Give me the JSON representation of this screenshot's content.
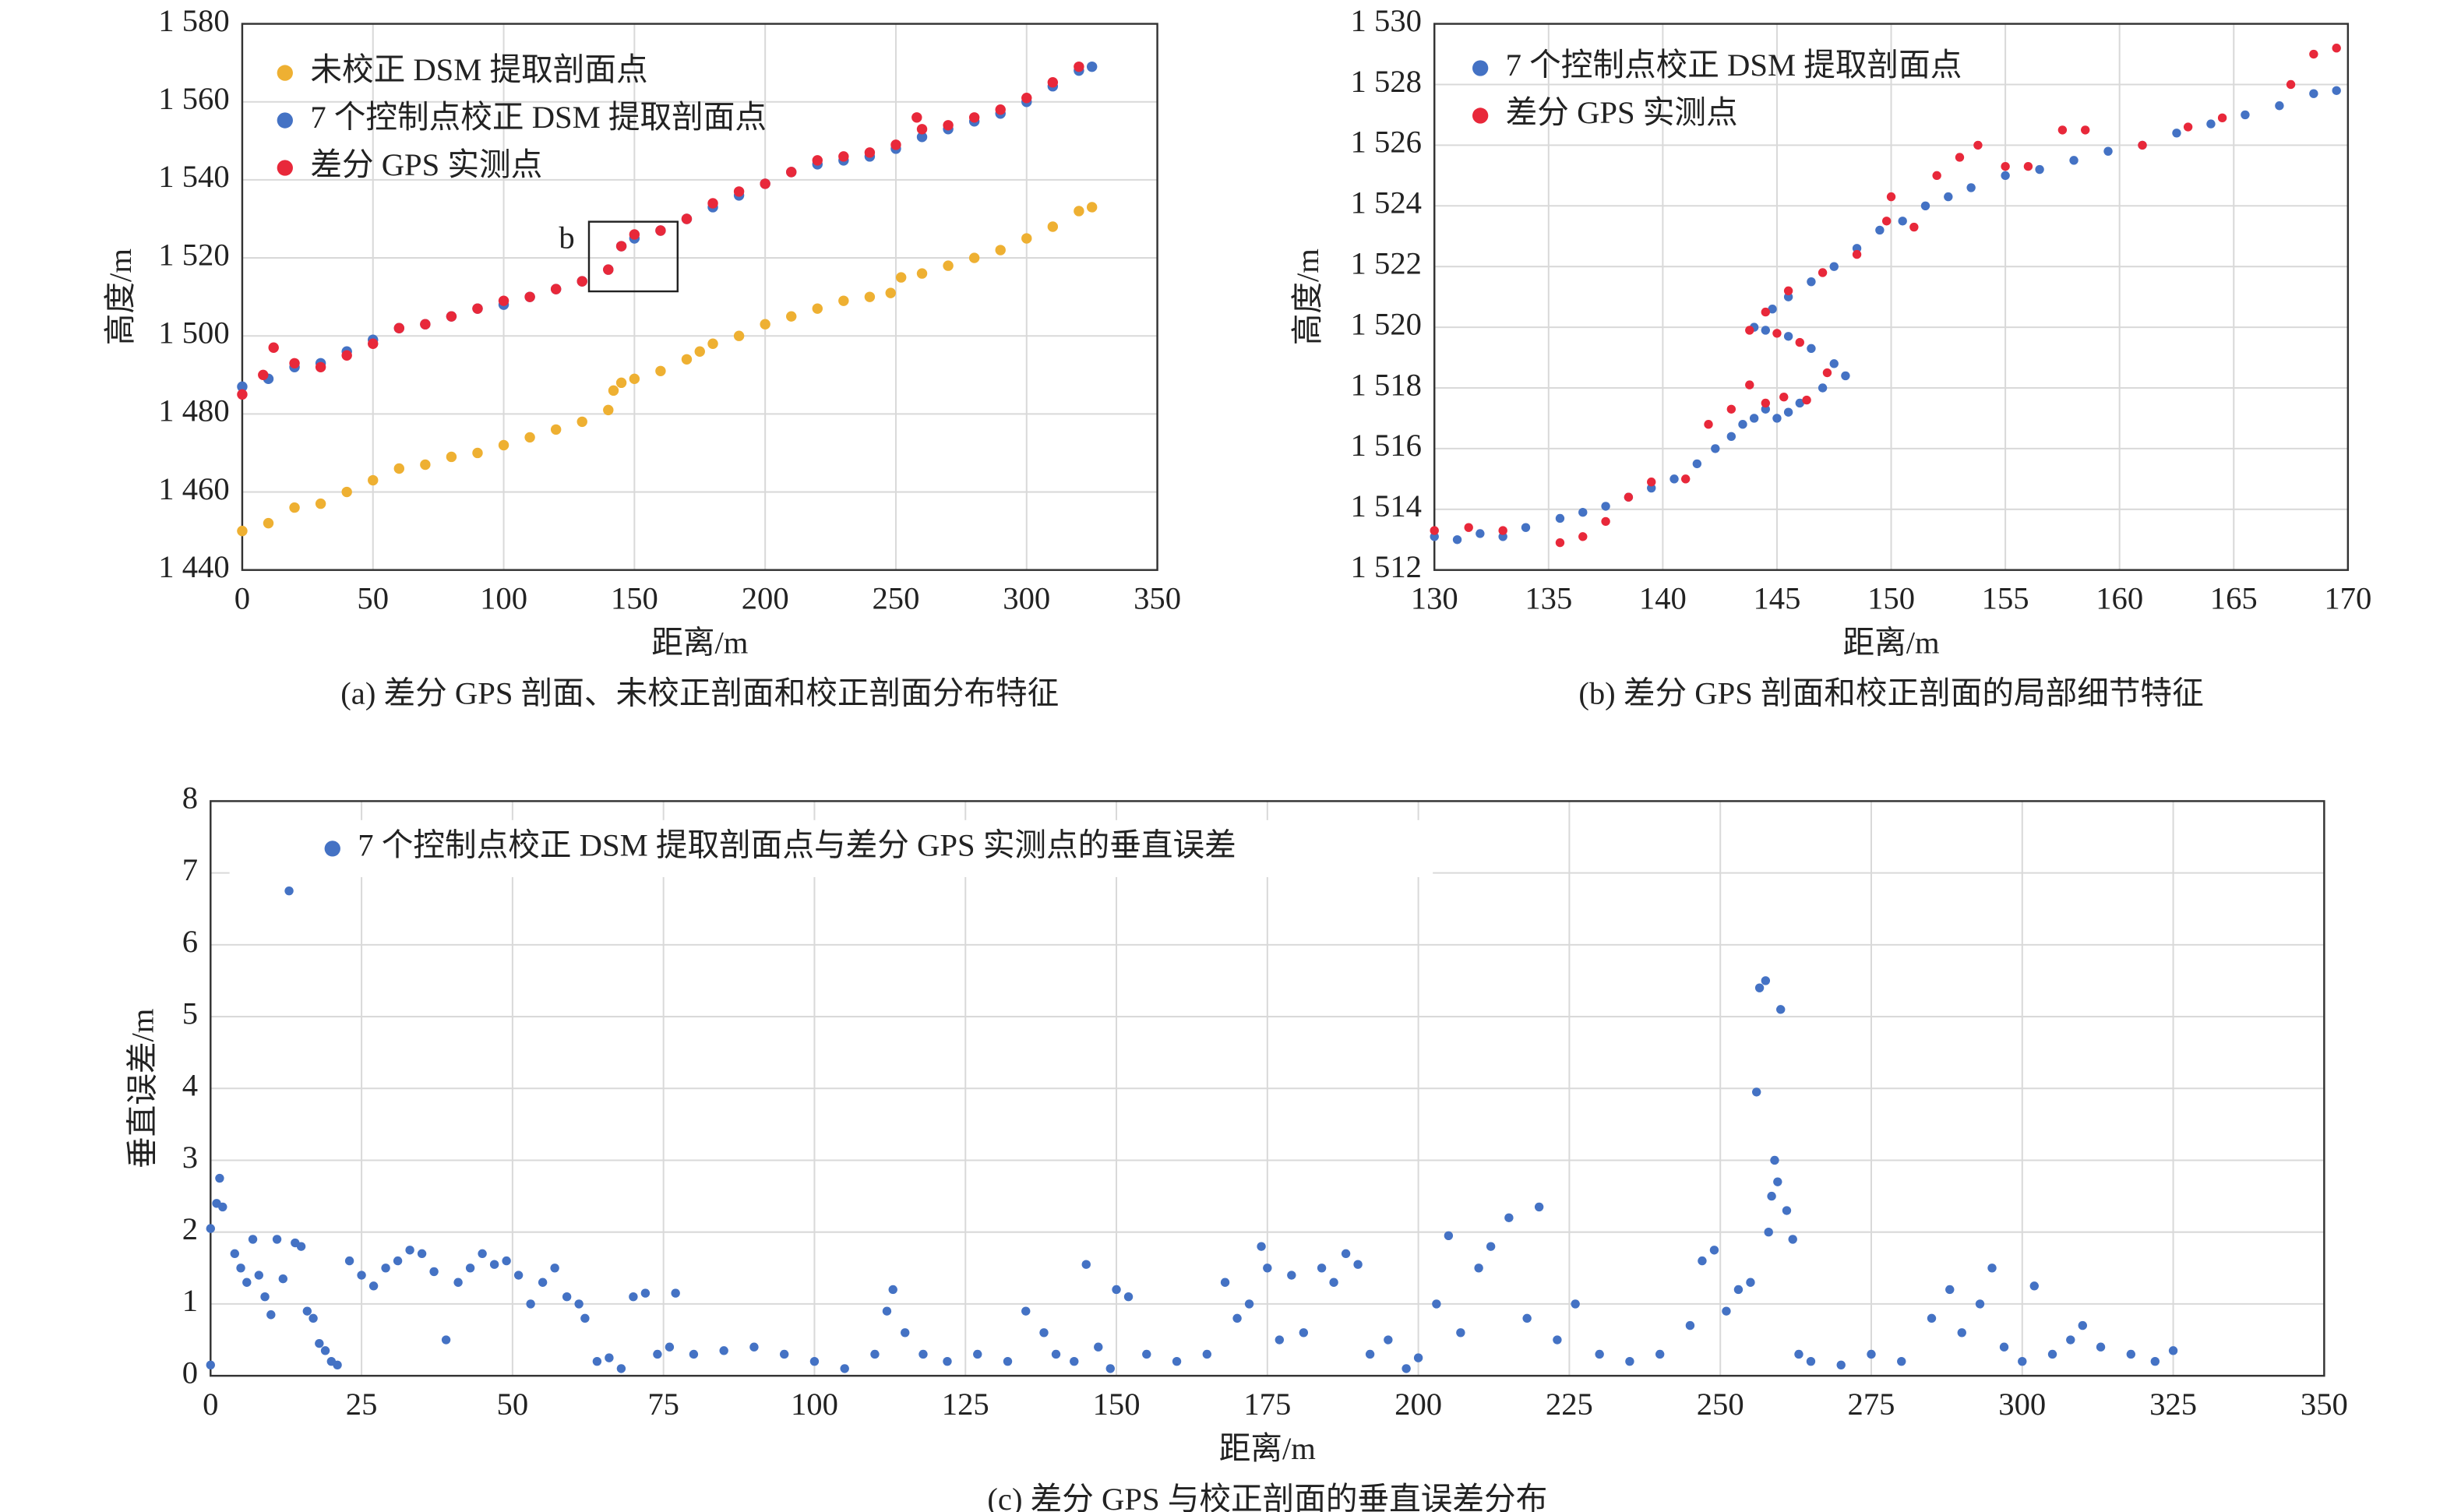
{
  "chart_data": [
    {
      "type": "scatter",
      "title": "(a) 差分 GPS 剖面、未校正剖面和校正剖面分布特征",
      "xlabel": "距离/m",
      "ylabel": "高度/m",
      "annotation": "b",
      "legend": "upper left",
      "grid": true,
      "xlim": [
        0,
        350
      ],
      "xticks": [
        0,
        50,
        100,
        150,
        200,
        250,
        300,
        350
      ],
      "ylim": [
        1440,
        1580
      ],
      "yticks": [
        {
          "value": 1440,
          "label": "1 440"
        },
        {
          "value": 1460,
          "label": "1 460"
        },
        {
          "value": 1480,
          "label": "1 480"
        },
        {
          "value": 1500,
          "label": "1 500"
        },
        {
          "value": 1520,
          "label": "1 520"
        },
        {
          "value": 1540,
          "label": "1 540"
        },
        {
          "value": 1560,
          "label": "1 560"
        },
        {
          "value": 1580,
          "label": "1 580"
        }
      ],
      "series": [
        {
          "name": "未校正 DSM 提取剖面点",
          "color": "#eeb032",
          "x": [
            0,
            10,
            20,
            30,
            40,
            50,
            60,
            70,
            80,
            90,
            100,
            110,
            120,
            130,
            140,
            142,
            145,
            150,
            160,
            170,
            175,
            180,
            190,
            200,
            210,
            220,
            230,
            240,
            248,
            252,
            260,
            270,
            280,
            290,
            300,
            310,
            320,
            325
          ],
          "y": [
            1450,
            1452,
            1456,
            1457,
            1460,
            1463,
            1466,
            1467,
            1469,
            1470,
            1472,
            1474,
            1476,
            1478,
            1481,
            1486,
            1488,
            1489,
            1491,
            1494,
            1496,
            1498,
            1500,
            1503,
            1505,
            1507,
            1509,
            1510,
            1511,
            1515,
            1516,
            1518,
            1520,
            1522,
            1525,
            1528,
            1532,
            1533
          ]
        },
        {
          "name": "7 个控制点校正 DSM 提取剖面点",
          "color": "#4472c4",
          "x": [
            0,
            10,
            20,
            30,
            40,
            50,
            60,
            70,
            80,
            90,
            100,
            110,
            120,
            130,
            140,
            145,
            150,
            160,
            170,
            180,
            190,
            200,
            210,
            220,
            230,
            240,
            250,
            260,
            270,
            280,
            290,
            300,
            310,
            320,
            325
          ],
          "y": [
            1487,
            1489,
            1492,
            1493,
            1496,
            1499,
            1502,
            1503,
            1505,
            1507,
            1508,
            1510,
            1512,
            1514,
            1517,
            1523,
            1525,
            1527,
            1530,
            1533,
            1536,
            1539,
            1542,
            1544,
            1545,
            1546,
            1548,
            1551,
            1553,
            1555,
            1557,
            1560,
            1564,
            1568,
            1569
          ]
        },
        {
          "name": "差分 GPS 实测点",
          "color": "#e8283a",
          "x": [
            0,
            8,
            12,
            20,
            30,
            40,
            50,
            60,
            70,
            80,
            90,
            100,
            110,
            120,
            130,
            140,
            145,
            150,
            160,
            170,
            180,
            190,
            200,
            210,
            220,
            230,
            240,
            250,
            258,
            260,
            270,
            280,
            290,
            300,
            310,
            320
          ],
          "y": [
            1485,
            1490,
            1497,
            1493,
            1492,
            1495,
            1498,
            1502,
            1503,
            1505,
            1507,
            1509,
            1510,
            1512,
            1514,
            1517,
            1523,
            1526,
            1527,
            1530,
            1534,
            1537,
            1539,
            1542,
            1545,
            1546,
            1547,
            1549,
            1556,
            1553,
            1554,
            1556,
            1558,
            1561,
            1565,
            1569
          ]
        }
      ]
    },
    {
      "type": "scatter",
      "title": "(b) 差分 GPS 剖面和校正剖面的局部细节特征",
      "xlabel": "距离/m",
      "ylabel": "高度/m",
      "legend": "upper left",
      "grid": true,
      "xlim": [
        130,
        170
      ],
      "xticks": [
        130,
        135,
        140,
        145,
        150,
        155,
        160,
        165,
        170
      ],
      "ylim": [
        1512,
        1530
      ],
      "yticks": [
        {
          "value": 1512,
          "label": "1 512"
        },
        {
          "value": 1514,
          "label": "1 514"
        },
        {
          "value": 1516,
          "label": "1 516"
        },
        {
          "value": 1518,
          "label": "1 518"
        },
        {
          "value": 1520,
          "label": "1 520"
        },
        {
          "value": 1522,
          "label": "1 522"
        },
        {
          "value": 1524,
          "label": "1 524"
        },
        {
          "value": 1526,
          "label": "1 526"
        },
        {
          "value": 1528,
          "label": "1 528"
        },
        {
          "value": 1530,
          "label": "1 530"
        }
      ],
      "series": [
        {
          "name": "7 个控制点校正 DSM 提取剖面点",
          "color": "#4472c4",
          "x": [
            130,
            131,
            132,
            133,
            134,
            135.5,
            136.5,
            137.5,
            138.5,
            139.5,
            140.5,
            141.5,
            142.3,
            143,
            143.5,
            144,
            144.5,
            145,
            145.5,
            146,
            147,
            148,
            147.5,
            146.5,
            145.5,
            144.5,
            144,
            144.8,
            145.5,
            146.5,
            147.5,
            148.5,
            149.5,
            150.5,
            151.5,
            152.5,
            153.5,
            155,
            156.5,
            158,
            159.5,
            161,
            162.5,
            164,
            165.5,
            167,
            168.5,
            169.5
          ],
          "y": [
            1513.1,
            1513,
            1513.2,
            1513.1,
            1513.4,
            1513.7,
            1513.9,
            1514.1,
            1514.4,
            1514.7,
            1515,
            1515.5,
            1516,
            1516.4,
            1516.8,
            1517,
            1517.3,
            1517,
            1517.2,
            1517.5,
            1518,
            1518.4,
            1518.8,
            1519.3,
            1519.7,
            1519.9,
            1520,
            1520.6,
            1521,
            1521.5,
            1522,
            1522.6,
            1523.2,
            1523.5,
            1524,
            1524.3,
            1524.6,
            1525,
            1525.2,
            1525.5,
            1525.8,
            1526,
            1526.4,
            1526.7,
            1527,
            1527.3,
            1527.7,
            1527.8
          ]
        },
        {
          "name": "差分 GPS 实测点",
          "color": "#e8283a",
          "x": [
            130,
            131.5,
            133,
            135.5,
            136.5,
            137.5,
            138.5,
            139.5,
            141,
            142,
            143,
            143.8,
            144.5,
            145.3,
            146.3,
            147.2,
            146,
            145,
            143.8,
            144.5,
            145.5,
            147,
            148.5,
            149.8,
            150,
            151,
            152,
            153,
            153.8,
            155,
            156,
            157.5,
            158.5,
            161,
            163,
            164.5,
            167.5,
            168.5,
            169.5
          ],
          "y": [
            1513.3,
            1513.4,
            1513.3,
            1512.9,
            1513.1,
            1513.6,
            1514.4,
            1514.9,
            1515,
            1516.8,
            1517.3,
            1518.1,
            1517.5,
            1517.7,
            1517.6,
            1518.5,
            1519.5,
            1519.8,
            1519.9,
            1520.5,
            1521.2,
            1521.8,
            1522.4,
            1523.5,
            1524.3,
            1523.3,
            1525,
            1525.6,
            1526,
            1525.3,
            1525.3,
            1526.5,
            1526.5,
            1526,
            1526.6,
            1526.9,
            1528,
            1529,
            1529.2
          ]
        }
      ]
    },
    {
      "type": "scatter",
      "title": "(c) 差分 GPS 与校正剖面的垂直误差分布",
      "xlabel": "距离/m",
      "ylabel": "垂直误差/m",
      "legend": "upper left",
      "grid": true,
      "xlim": [
        0,
        350
      ],
      "xticks": [
        0,
        25,
        50,
        75,
        100,
        125,
        150,
        175,
        200,
        225,
        250,
        275,
        300,
        325,
        350
      ],
      "ylim": [
        0,
        8
      ],
      "yticks": [
        0,
        1,
        2,
        3,
        4,
        5,
        6,
        7,
        8
      ],
      "series": [
        {
          "name": "7 个控制点校正 DSM 提取剖面点与差分 GPS 实测点的垂直误差",
          "color": "#4472c4",
          "x": [
            0,
            0,
            1,
            1.5,
            2,
            4,
            5,
            6,
            7,
            8,
            9,
            10,
            11,
            12,
            13,
            14,
            15,
            16,
            17,
            18,
            19,
            20,
            21,
            23,
            25,
            27,
            29,
            31,
            33,
            35,
            37,
            39,
            41,
            43,
            45,
            47,
            49,
            51,
            53,
            55,
            57,
            59,
            61,
            62,
            64,
            66,
            68,
            70,
            72,
            74,
            76,
            77,
            80,
            85,
            90,
            95,
            100,
            105,
            110,
            112,
            113,
            115,
            118,
            122,
            127,
            132,
            135,
            138,
            140,
            143,
            145,
            147,
            149,
            150,
            152,
            155,
            160,
            165,
            168,
            170,
            172,
            174,
            175,
            177,
            179,
            181,
            184,
            186,
            188,
            190,
            192,
            195,
            198,
            200,
            203,
            205,
            207,
            210,
            212,
            215,
            218,
            220,
            223,
            226,
            230,
            235,
            240,
            245,
            247,
            249,
            251,
            253,
            255,
            256,
            256.5,
            257.5,
            258,
            258.5,
            259,
            259.5,
            260,
            261,
            262,
            263,
            265,
            270,
            275,
            280,
            285,
            288,
            290,
            293,
            295,
            297,
            300,
            302,
            305,
            308,
            310,
            313,
            318,
            322,
            325
          ],
          "y": [
            2.05,
            0.15,
            2.4,
            2.75,
            2.35,
            1.7,
            1.5,
            1.3,
            1.9,
            1.4,
            1.1,
            0.85,
            1.9,
            1.35,
            6.75,
            1.85,
            1.8,
            0.9,
            0.8,
            0.45,
            0.35,
            0.2,
            0.15,
            1.6,
            1.4,
            1.25,
            1.5,
            1.6,
            1.75,
            1.7,
            1.45,
            0.5,
            1.3,
            1.5,
            1.7,
            1.55,
            1.6,
            1.4,
            1,
            1.3,
            1.5,
            1.1,
            1,
            0.8,
            0.2,
            0.25,
            0.1,
            1.1,
            1.15,
            0.3,
            0.4,
            1.15,
            0.3,
            0.35,
            0.4,
            0.3,
            0.2,
            0.1,
            0.3,
            0.9,
            1.2,
            0.6,
            0.3,
            0.2,
            0.3,
            0.2,
            0.9,
            0.6,
            0.3,
            0.2,
            1.55,
            0.4,
            0.1,
            1.2,
            1.1,
            0.3,
            0.2,
            0.3,
            1.3,
            0.8,
            1,
            1.8,
            1.5,
            0.5,
            1.4,
            0.6,
            1.5,
            1.3,
            1.7,
            1.55,
            0.3,
            0.5,
            0.1,
            0.25,
            1,
            1.95,
            0.6,
            1.5,
            1.8,
            2.2,
            0.8,
            2.35,
            0.5,
            1,
            0.3,
            0.2,
            0.3,
            0.7,
            1.6,
            1.75,
            0.9,
            1.2,
            1.3,
            3.95,
            5.4,
            5.5,
            2,
            2.5,
            3,
            2.7,
            5.1,
            2.3,
            1.9,
            0.3,
            0.2,
            0.15,
            0.3,
            0.2,
            0.8,
            1.2,
            0.6,
            1,
            1.5,
            0.4,
            0.2,
            1.25,
            0.3,
            0.5,
            0.7,
            0.4,
            0.3,
            0.2,
            0.35
          ]
        }
      ]
    }
  ]
}
